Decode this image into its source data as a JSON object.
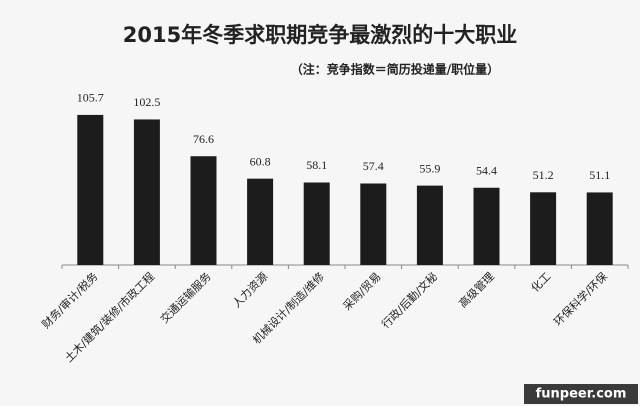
{
  "chart_data": {
    "type": "bar",
    "title": "2015年冬季求职期竞争最激烈的十大职业",
    "subtitle": "（注：竞争指数＝简历投递量/职位量）",
    "categories": [
      "财务/审计/税务",
      "土木/建筑/装修/市政工程",
      "交通运输服务",
      "人力资源",
      "机械设计/制造/维修",
      "采购/贸易",
      "行政/后勤/文秘",
      "高级管理",
      "化工",
      "环保科学/环保"
    ],
    "values": [
      105.7,
      102.5,
      76.6,
      60.8,
      58.1,
      57.4,
      55.9,
      54.4,
      51.2,
      51.1
    ],
    "color": "#1c1c1c",
    "watermark": "funpeer.com"
  }
}
